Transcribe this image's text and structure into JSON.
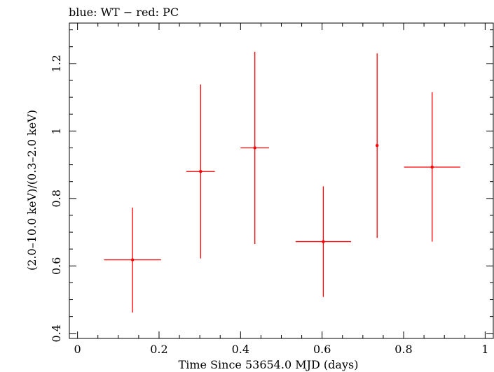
{
  "chart_data": {
    "type": "scatter",
    "title": "blue: WT − red: PC",
    "xlabel": "Time Since 53654.0 MJD (days)",
    "ylabel": "(2.0–10.0 keV)/(0.3–2.0 keV)",
    "xlim": [
      -0.02,
      1.02
    ],
    "ylim": [
      0.385,
      1.32
    ],
    "x_ticks": [
      0,
      0.2,
      0.4,
      0.6,
      0.8,
      1
    ],
    "x_tick_labels": [
      "0",
      "0.2",
      "0.4",
      "0.6",
      "0.8",
      "1"
    ],
    "y_ticks": [
      0.4,
      0.6,
      0.8,
      1.0,
      1.2
    ],
    "y_tick_labels": [
      "0.4",
      "0.6",
      "0.8",
      "1",
      "1.2"
    ],
    "grid": false,
    "series": [
      {
        "color": "#ff0000",
        "points": [
          {
            "x": 0.135,
            "y": 0.618,
            "xlo": 0.065,
            "xhi": 0.205,
            "ylo": 0.462,
            "yhi": 0.773
          },
          {
            "x": 0.302,
            "y": 0.88,
            "xlo": 0.267,
            "xhi": 0.337,
            "ylo": 0.622,
            "yhi": 1.138
          },
          {
            "x": 0.435,
            "y": 0.95,
            "xlo": 0.4,
            "xhi": 0.47,
            "ylo": 0.665,
            "yhi": 1.235
          },
          {
            "x": 0.603,
            "y": 0.672,
            "xlo": 0.535,
            "xhi": 0.671,
            "ylo": 0.508,
            "yhi": 0.836
          },
          {
            "x": 0.735,
            "y": 0.957,
            "xlo": 0.735,
            "xhi": 0.735,
            "ylo": 0.683,
            "yhi": 1.23
          },
          {
            "x": 0.87,
            "y": 0.893,
            "xlo": 0.801,
            "xhi": 0.939,
            "ylo": 0.672,
            "yhi": 1.115
          }
        ]
      }
    ]
  }
}
